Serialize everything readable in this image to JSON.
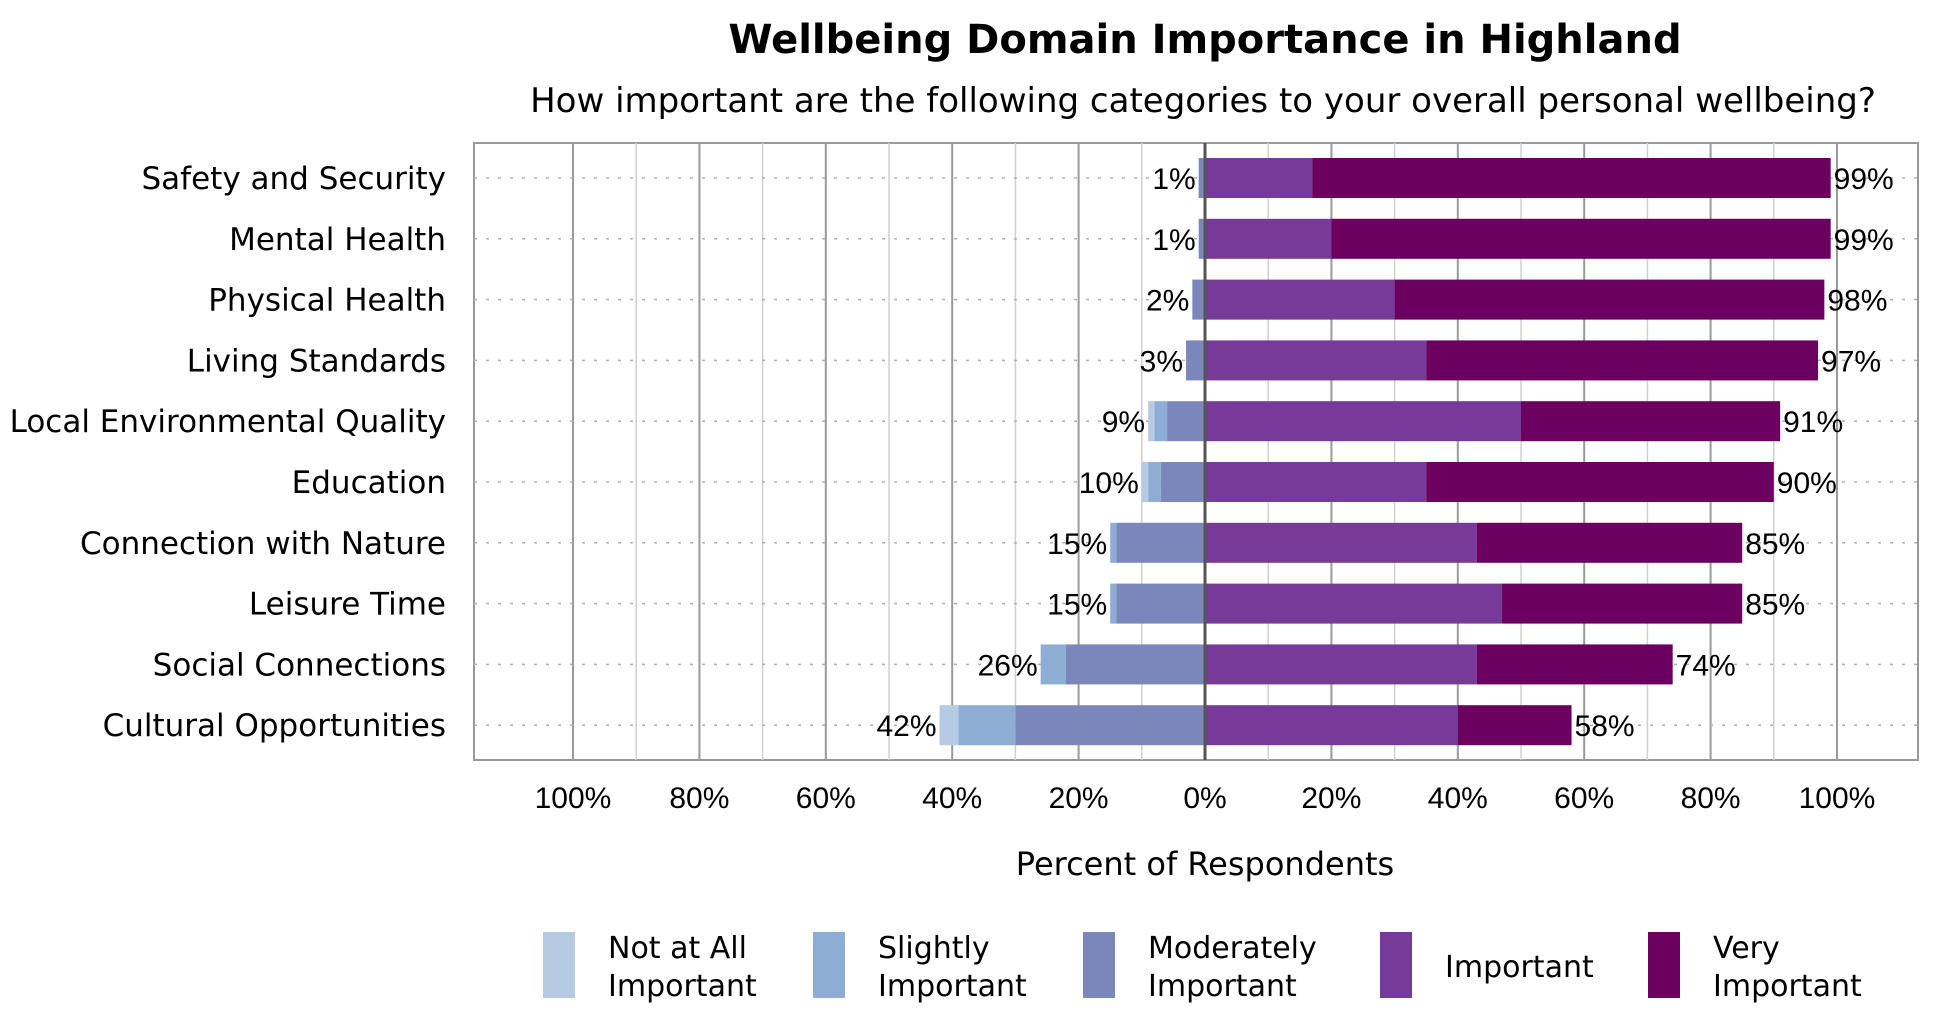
{
  "chart_data": {
    "type": "bar",
    "orientation": "horizontal-diverging",
    "title": "Wellbeing Domain Importance in Highland",
    "subtitle": "How important are the following categories to your overall personal wellbeing?",
    "xlabel": "Percent of Respondents",
    "xlim": [
      -100,
      100
    ],
    "tick_labels": [
      "100%",
      "80%",
      "60%",
      "40%",
      "20%",
      "0%",
      "20%",
      "40%",
      "60%",
      "80%",
      "100%"
    ],
    "grid": true,
    "legend_position": "bottom",
    "categories": [
      "Safety and Security",
      "Mental Health",
      "Physical Health",
      "Living Standards",
      "Local Environmental Quality",
      "Education",
      "Connection with Nature",
      "Leisure Time",
      "Social Connections",
      "Cultural Opportunities"
    ],
    "series": [
      {
        "name": "Not at All Important",
        "side": "negative",
        "color": "#b6cbe3",
        "values": [
          0,
          0,
          0,
          0,
          1,
          1,
          0,
          0,
          0,
          3
        ]
      },
      {
        "name": "Slightly Important",
        "side": "negative",
        "color": "#8dadd4",
        "values": [
          0,
          0,
          0,
          0,
          2,
          2,
          1,
          1,
          4,
          9
        ]
      },
      {
        "name": "Moderately Important",
        "side": "negative",
        "color": "#7b86bb",
        "values": [
          1,
          1,
          2,
          3,
          6,
          7,
          14,
          14,
          22,
          30
        ]
      },
      {
        "name": "Important",
        "side": "positive",
        "color": "#763b98",
        "values": [
          17,
          20,
          30,
          35,
          50,
          35,
          43,
          47,
          43,
          40
        ]
      },
      {
        "name": "Very Important",
        "side": "positive",
        "color": "#6b0060",
        "values": [
          82,
          79,
          68,
          62,
          41,
          55,
          42,
          38,
          31,
          18
        ]
      }
    ],
    "negative_totals": [
      "1%",
      "1%",
      "2%",
      "3%",
      "9%",
      "10%",
      "15%",
      "15%",
      "26%",
      "42%"
    ],
    "positive_totals": [
      "99%",
      "99%",
      "98%",
      "97%",
      "91%",
      "90%",
      "85%",
      "85%",
      "74%",
      "58%"
    ],
    "legend": [
      {
        "line1": "Not at All",
        "line2": "Important",
        "color": "#b6cbe3"
      },
      {
        "line1": "Slightly",
        "line2": "Important",
        "color": "#8dadd4"
      },
      {
        "line1": "Moderately",
        "line2": "Important",
        "color": "#7b86bb"
      },
      {
        "line1": "Important",
        "line2": "",
        "color": "#763b98"
      },
      {
        "line1": "Very",
        "line2": "Important",
        "color": "#6b0060"
      }
    ]
  }
}
